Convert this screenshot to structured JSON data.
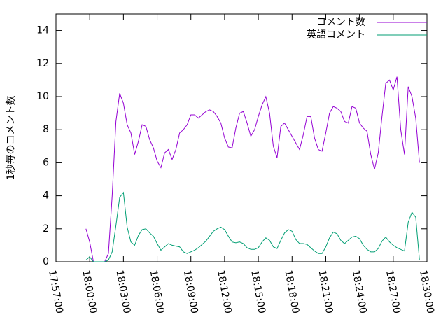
{
  "chart_data": {
    "type": "line",
    "ylabel": "1秒毎のコメント数",
    "x": [
      "17:59:40",
      "18:00:00",
      "18:00:20",
      "18:00:40",
      "18:01:00",
      "18:01:20",
      "18:01:40",
      "18:02:00",
      "18:02:20",
      "18:02:40",
      "18:03:00",
      "18:03:20",
      "18:03:40",
      "18:04:00",
      "18:04:20",
      "18:04:40",
      "18:05:00",
      "18:05:20",
      "18:05:40",
      "18:06:00",
      "18:06:20",
      "18:06:40",
      "18:07:00",
      "18:07:20",
      "18:07:40",
      "18:08:00",
      "18:08:20",
      "18:08:40",
      "18:09:00",
      "18:09:20",
      "18:09:40",
      "18:10:00",
      "18:10:20",
      "18:10:40",
      "18:11:00",
      "18:11:20",
      "18:11:40",
      "18:12:00",
      "18:12:20",
      "18:12:40",
      "18:13:00",
      "18:13:20",
      "18:13:40",
      "18:14:00",
      "18:14:20",
      "18:14:40",
      "18:15:00",
      "18:15:20",
      "18:15:40",
      "18:16:00",
      "18:16:20",
      "18:16:40",
      "18:17:00",
      "18:17:20",
      "18:17:40",
      "18:18:00",
      "18:18:20",
      "18:18:40",
      "18:19:00",
      "18:19:20",
      "18:19:40",
      "18:20:00",
      "18:20:20",
      "18:20:40",
      "18:21:00",
      "18:21:20",
      "18:21:40",
      "18:22:00",
      "18:22:20",
      "18:22:40",
      "18:23:00",
      "18:23:20",
      "18:23:40",
      "18:24:00",
      "18:24:20",
      "18:24:40",
      "18:25:00",
      "18:25:20",
      "18:25:40",
      "18:26:00",
      "18:26:20",
      "18:26:40",
      "18:27:00",
      "18:27:20",
      "18:27:40",
      "18:28:00",
      "18:28:20",
      "18:28:40",
      "18:29:00",
      "18:29:20"
    ],
    "series": [
      {
        "name": "コメント数",
        "color": "#9400d3",
        "values": [
          2,
          1.2,
          0,
          0,
          0,
          0,
          0.5,
          4,
          8.5,
          10.2,
          9.6,
          8.3,
          7.8,
          6.5,
          7.3,
          8.3,
          8.2,
          7.4,
          6.9,
          6.1,
          5.7,
          6.6,
          6.8,
          6.2,
          6.8,
          7.8,
          8,
          8.3,
          8.9,
          8.9,
          8.7,
          8.9,
          9.1,
          9.2,
          9.1,
          8.8,
          8.4,
          7.5,
          6.95,
          6.9,
          8.1,
          9,
          9.1,
          8.4,
          7.6,
          8,
          8.8,
          9.5,
          10,
          9,
          7,
          6.3,
          8.2,
          8.4,
          8,
          7.6,
          7.2,
          6.8,
          7.7,
          8.8,
          8.8,
          7.5,
          6.8,
          6.7,
          7.8,
          9,
          9.4,
          9.3,
          9.1,
          8.5,
          8.4,
          9.4,
          9.3,
          8.4,
          8.1,
          7.9,
          6.5,
          5.6,
          6.6,
          8.8,
          10.8,
          11,
          10.4,
          11.2,
          8,
          6.5,
          10.6,
          10,
          8.7,
          6
        ]
      },
      {
        "name": "英語コメント",
        "color": "#009e73",
        "values": [
          0.1,
          0.3,
          0,
          0,
          0,
          0,
          0.1,
          0.6,
          2.2,
          3.9,
          4.2,
          2.1,
          1.2,
          1,
          1.6,
          1.95,
          2,
          1.75,
          1.55,
          1.1,
          0.7,
          0.9,
          1.1,
          1,
          0.95,
          0.9,
          0.6,
          0.5,
          0.6,
          0.7,
          0.85,
          1.05,
          1.25,
          1.55,
          1.85,
          2,
          2.1,
          1.95,
          1.55,
          1.2,
          1.15,
          1.2,
          1.1,
          0.85,
          0.75,
          0.75,
          0.85,
          1.2,
          1.45,
          1.3,
          0.9,
          0.8,
          1.3,
          1.75,
          1.95,
          1.85,
          1.35,
          1.1,
          1.1,
          1.05,
          0.85,
          0.65,
          0.5,
          0.5,
          0.9,
          1.45,
          1.8,
          1.7,
          1.3,
          1.1,
          1.3,
          1.5,
          1.55,
          1.4,
          1,
          0.75,
          0.6,
          0.6,
          0.8,
          1.25,
          1.5,
          1.2,
          1,
          0.85,
          0.75,
          0.65,
          2.4,
          3,
          2.7,
          0.1
        ]
      }
    ],
    "xlim": [
      "17:57:00",
      "18:30:00"
    ],
    "xticks": [
      "17:57:00",
      "18:00:00",
      "18:03:00",
      "18:06:00",
      "18:09:00",
      "18:12:00",
      "18:15:00",
      "18:18:00",
      "18:21:00",
      "18:24:00",
      "18:27:00",
      "18:30:00"
    ],
    "ylim": [
      0,
      15
    ],
    "yticks": [
      0,
      2,
      4,
      6,
      8,
      10,
      12,
      14
    ],
    "legend": "upper right"
  }
}
